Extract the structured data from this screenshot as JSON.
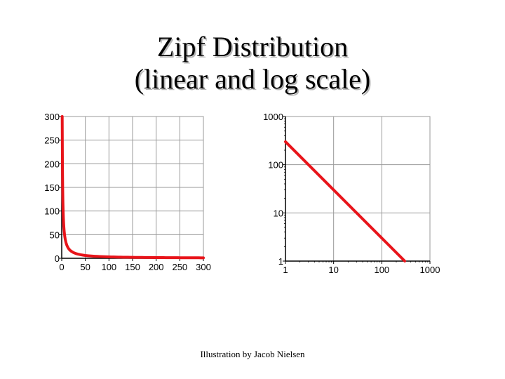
{
  "slide": {
    "title_line1": "Zipf Distribution",
    "title_line2": "(linear and log scale)",
    "caption": "Illustration by Jacob Nielsen"
  },
  "colors": {
    "curve": "#e8141a",
    "grid": "#9a9a9a",
    "axis": "#000000"
  },
  "chart_data": [
    {
      "type": "line",
      "scale": "linear",
      "xlim": [
        0,
        300
      ],
      "ylim": [
        0,
        300
      ],
      "x_ticks": [
        0,
        50,
        100,
        150,
        200,
        250,
        300
      ],
      "y_ticks": [
        0,
        50,
        100,
        150,
        200,
        250,
        300
      ],
      "x_tick_labels": [
        "0",
        "50",
        "100",
        "150",
        "200",
        "250",
        "300"
      ],
      "y_tick_labels": [
        "0",
        "50",
        "100",
        "150",
        "200",
        "250",
        "300"
      ],
      "grid": true,
      "series": [
        {
          "x": [
            1,
            2,
            3,
            4,
            5,
            7,
            10,
            15,
            20,
            30,
            50,
            75,
            100,
            150,
            200,
            250,
            300
          ],
          "y": [
            300,
            150,
            100,
            75,
            60,
            43,
            30,
            20,
            15,
            10,
            6,
            4,
            3,
            2,
            1.5,
            1.2,
            1
          ]
        }
      ]
    },
    {
      "type": "line",
      "scale": "log",
      "xlim": [
        1,
        1000
      ],
      "ylim": [
        1,
        1000
      ],
      "x_ticks": [
        1,
        10,
        100,
        1000
      ],
      "y_ticks": [
        1,
        10,
        100,
        1000
      ],
      "x_tick_labels": [
        "1",
        "10",
        "100",
        "1000"
      ],
      "y_tick_labels": [
        "1",
        "10",
        "100",
        "1000"
      ],
      "grid": true,
      "series": [
        {
          "x": [
            1,
            300
          ],
          "y": [
            300,
            1
          ]
        }
      ]
    }
  ]
}
